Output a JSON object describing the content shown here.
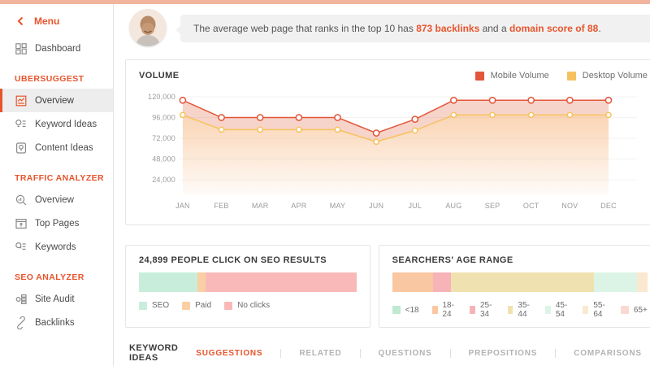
{
  "page": {
    "accent_color": "#e8542c",
    "top_strip_color": "#f2b49c"
  },
  "sidebar": {
    "menu_label": "Menu",
    "dashboard_label": "Dashboard",
    "sections": [
      {
        "title": "UBERSUGGEST",
        "items": [
          {
            "label": "Overview",
            "icon": "overview-report-icon",
            "active": true
          },
          {
            "label": "Keyword Ideas",
            "icon": "keyword-ideas-icon",
            "active": false
          },
          {
            "label": "Content Ideas",
            "icon": "content-ideas-icon",
            "active": false
          }
        ]
      },
      {
        "title": "TRAFFIC ANALYZER",
        "items": [
          {
            "label": "Overview",
            "icon": "traffic-overview-icon",
            "active": false
          },
          {
            "label": "Top Pages",
            "icon": "top-pages-icon",
            "active": false
          },
          {
            "label": "Keywords",
            "icon": "keywords-icon",
            "active": false
          }
        ]
      },
      {
        "title": "SEO ANALYZER",
        "items": [
          {
            "label": "Site Audit",
            "icon": "site-audit-icon",
            "active": false
          },
          {
            "label": "Backlinks",
            "icon": "backlinks-icon",
            "active": false
          }
        ]
      }
    ]
  },
  "banner": {
    "avatar": "neil-patel-photo",
    "text_prefix": "The average web page that ranks in the top 10 has ",
    "highlight1": "873 backlinks",
    "text_middle": " and a ",
    "highlight2": "domain score of 88",
    "text_suffix": "."
  },
  "volume_card": {
    "title": "VOLUME",
    "legend": [
      {
        "label": "Mobile Volume",
        "color": "#e2563a"
      },
      {
        "label": "Desktop Volume",
        "color": "#f6c25f"
      }
    ]
  },
  "chart_data": {
    "type": "area",
    "title": "VOLUME",
    "categories": [
      "JAN",
      "FEB",
      "MAR",
      "APR",
      "MAY",
      "JUN",
      "JUL",
      "AUG",
      "SEP",
      "OCT",
      "NOV",
      "DEC"
    ],
    "series": [
      {
        "name": "Mobile Volume",
        "color": "#e2563a",
        "values": [
          116000,
          96000,
          96000,
          96000,
          96000,
          78000,
          94000,
          116000,
          116000,
          116000,
          116000,
          116000
        ]
      },
      {
        "name": "Desktop Volume",
        "color": "#f6c25f",
        "values": [
          99000,
          82000,
          82000,
          82000,
          82000,
          68000,
          81000,
          99000,
          99000,
          99000,
          99000,
          99000
        ]
      }
    ],
    "yticks": [
      24000,
      48000,
      72000,
      96000,
      120000
    ],
    "ylim": [
      0,
      132000
    ],
    "grid": "horizontal-only",
    "legend_position": "top-right"
  },
  "click_card": {
    "title": "24,899 PEOPLE CLICK ON SEO RESULTS",
    "chart_data": {
      "type": "bar",
      "segments": [
        {
          "label": "SEO",
          "value": 27,
          "color": "#c8eedb"
        },
        {
          "label": "Paid",
          "value": 3.5,
          "color": "#fbcfa4"
        },
        {
          "label": "No clicks",
          "value": 69.5,
          "color": "#f9b9b9"
        }
      ]
    }
  },
  "age_card": {
    "title": "SEARCHERS' AGE RANGE",
    "chart_data": {
      "type": "bar",
      "segments": [
        {
          "label": "<18",
          "value": 0,
          "color": "#bfe9d1"
        },
        {
          "label": "18-24",
          "value": 16,
          "color": "#f9c7a2"
        },
        {
          "label": "25-34",
          "value": 7,
          "color": "#f7b3b7"
        },
        {
          "label": "35-44",
          "value": 56,
          "color": "#f0e2b0"
        },
        {
          "label": "45-54",
          "value": 17,
          "color": "#dcf4e6"
        },
        {
          "label": "55-64",
          "value": 4,
          "color": "#fbe8d0"
        },
        {
          "label": "65+",
          "value": 0,
          "color": "#fbd9d3"
        }
      ]
    }
  },
  "keyword_ideas": {
    "title": "KEYWORD IDEAS",
    "tabs": [
      {
        "label": "SUGGESTIONS",
        "active": true
      },
      {
        "label": "RELATED",
        "active": false
      },
      {
        "label": "QUESTIONS",
        "active": false
      },
      {
        "label": "PREPOSITIONS",
        "active": false
      },
      {
        "label": "COMPARISONS",
        "active": false
      }
    ]
  }
}
